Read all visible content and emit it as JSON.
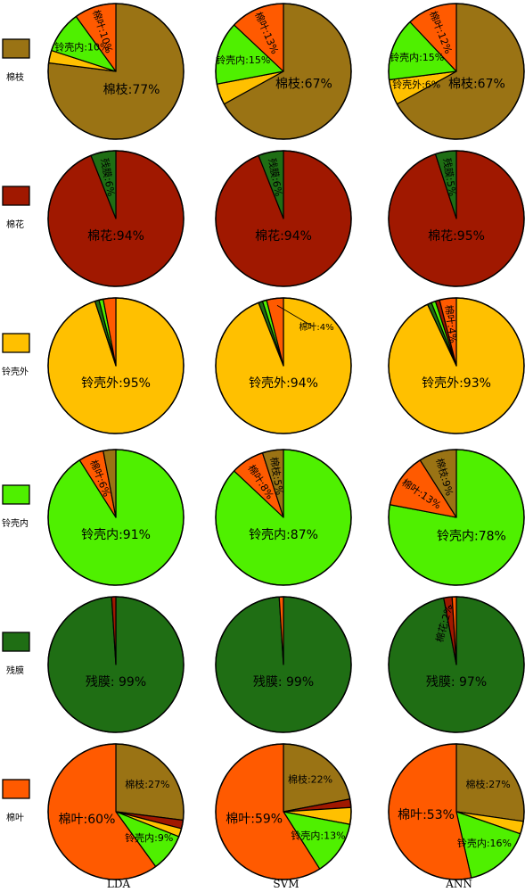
{
  "legend": [
    {
      "name": "棉枝",
      "color": "#9A7314"
    },
    {
      "name": "棉花",
      "color": "#A01800"
    },
    {
      "name": "铃壳外",
      "color": "#FFC000"
    },
    {
      "name": "铃壳内",
      "color": "#4FF000"
    },
    {
      "name": "残膜",
      "color": "#1F6E14"
    },
    {
      "name": "棉叶",
      "color": "#FF5A00"
    }
  ],
  "columns": [
    "LDA",
    "SVM",
    "ANN"
  ],
  "chart_data": {
    "type": "pie",
    "classes": [
      "棉枝",
      "棉花",
      "铃壳外",
      "铃壳内",
      "残膜",
      "棉叶"
    ],
    "colors": [
      "#9A7314",
      "#A01800",
      "#FFC000",
      "#4FF000",
      "#1F6E14",
      "#FF5A00"
    ],
    "methods": [
      "LDA",
      "SVM",
      "ANN"
    ],
    "rows": [
      {
        "true_class": "棉枝",
        "pies": [
          {
            "method": "LDA",
            "slices": [
              {
                "name": "棉枝",
                "value": 77
              },
              {
                "name": "铃壳外",
                "value": 3
              },
              {
                "name": "铃壳内",
                "value": 10
              },
              {
                "name": "棉叶",
                "value": 10
              }
            ],
            "labels": [
              {
                "text": "棉枝:77%"
              },
              {
                "text": "铃壳内:10%"
              },
              {
                "text": "棉叶:10%"
              }
            ]
          },
          {
            "method": "SVM",
            "slices": [
              {
                "name": "棉枝",
                "value": 67
              },
              {
                "name": "铃壳外",
                "value": 5
              },
              {
                "name": "铃壳内",
                "value": 15
              },
              {
                "name": "棉叶",
                "value": 13
              }
            ],
            "labels": [
              {
                "text": "棉枝:67%"
              },
              {
                "text": "铃壳内:15%"
              },
              {
                "text": "棉叶:13%"
              }
            ]
          },
          {
            "method": "ANN",
            "slices": [
              {
                "name": "棉枝",
                "value": 67
              },
              {
                "name": "铃壳外",
                "value": 6
              },
              {
                "name": "铃壳内",
                "value": 15
              },
              {
                "name": "棉叶",
                "value": 12
              }
            ],
            "labels": [
              {
                "text": "棉枝:67%"
              },
              {
                "text": "铃壳外:6%"
              },
              {
                "text": "铃壳内:15%"
              },
              {
                "text": "棉叶:12%"
              }
            ]
          }
        ]
      },
      {
        "true_class": "棉花",
        "pies": [
          {
            "method": "LDA",
            "slices": [
              {
                "name": "棉花",
                "value": 94
              },
              {
                "name": "残膜",
                "value": 6
              }
            ],
            "labels": [
              {
                "text": "棉花:94%"
              },
              {
                "text": "残膜:6%"
              }
            ]
          },
          {
            "method": "SVM",
            "slices": [
              {
                "name": "棉花",
                "value": 94
              },
              {
                "name": "残膜",
                "value": 6
              }
            ],
            "labels": [
              {
                "text": "棉花:94%"
              },
              {
                "text": "残膜:6%"
              }
            ]
          },
          {
            "method": "ANN",
            "slices": [
              {
                "name": "棉花",
                "value": 95
              },
              {
                "name": "残膜",
                "value": 5
              }
            ],
            "labels": [
              {
                "text": "棉花:95%"
              },
              {
                "text": "残膜:5%"
              }
            ]
          }
        ]
      },
      {
        "true_class": "铃壳外",
        "pies": [
          {
            "method": "LDA",
            "slices": [
              {
                "name": "铃壳外",
                "value": 95
              },
              {
                "name": "残膜",
                "value": 1
              },
              {
                "name": "铃壳内",
                "value": 1
              },
              {
                "name": "棉叶",
                "value": 3
              }
            ],
            "labels": [
              {
                "text": "铃壳外:95%"
              }
            ]
          },
          {
            "method": "SVM",
            "slices": [
              {
                "name": "铃壳外",
                "value": 94
              },
              {
                "name": "残膜",
                "value": 1
              },
              {
                "name": "铃壳内",
                "value": 1
              },
              {
                "name": "棉叶",
                "value": 4
              }
            ],
            "labels": [
              {
                "text": "铃壳外:94%"
              },
              {
                "text": "棉叶:4%"
              }
            ]
          },
          {
            "method": "ANN",
            "slices": [
              {
                "name": "铃壳外",
                "value": 93
              },
              {
                "name": "残膜",
                "value": 1
              },
              {
                "name": "铃壳内",
                "value": 1
              },
              {
                "name": "棉花",
                "value": 1
              },
              {
                "name": "棉叶",
                "value": 4
              }
            ],
            "labels": [
              {
                "text": "铃壳外:93%"
              },
              {
                "text": "棉叶:4%"
              }
            ]
          }
        ]
      },
      {
        "true_class": "铃壳内",
        "pies": [
          {
            "method": "LDA",
            "slices": [
              {
                "name": "铃壳内",
                "value": 91
              },
              {
                "name": "棉叶",
                "value": 6
              },
              {
                "name": "棉枝",
                "value": 3
              }
            ],
            "labels": [
              {
                "text": "铃壳内:91%"
              },
              {
                "text": "棉叶:6%"
              }
            ]
          },
          {
            "method": "SVM",
            "slices": [
              {
                "name": "铃壳内",
                "value": 87
              },
              {
                "name": "棉叶",
                "value": 8
              },
              {
                "name": "棉枝",
                "value": 5
              }
            ],
            "labels": [
              {
                "text": "铃壳内:87%"
              },
              {
                "text": "棉叶:8%"
              },
              {
                "text": "棉枝:5%"
              }
            ]
          },
          {
            "method": "ANN",
            "slices": [
              {
                "name": "铃壳内",
                "value": 78
              },
              {
                "name": "棉叶",
                "value": 13
              },
              {
                "name": "棉枝",
                "value": 9
              }
            ],
            "labels": [
              {
                "text": "铃壳内:78%"
              },
              {
                "text": "棉叶:13%"
              },
              {
                "text": "棉枝:9%"
              }
            ]
          }
        ]
      },
      {
        "true_class": "残膜",
        "pies": [
          {
            "method": "LDA",
            "slices": [
              {
                "name": "残膜",
                "value": 99
              },
              {
                "name": "棉花",
                "value": 1
              }
            ],
            "labels": [
              {
                "text": "残膜: 99%"
              }
            ]
          },
          {
            "method": "SVM",
            "slices": [
              {
                "name": "残膜",
                "value": 99
              },
              {
                "name": "棉叶",
                "value": 1
              }
            ],
            "labels": [
              {
                "text": "残膜: 99%"
              }
            ]
          },
          {
            "method": "ANN",
            "slices": [
              {
                "name": "残膜",
                "value": 97
              },
              {
                "name": "棉花",
                "value": 2
              },
              {
                "name": "棉叶",
                "value": 1
              }
            ],
            "labels": [
              {
                "text": "残膜: 97%"
              },
              {
                "text": "棉花:2%"
              }
            ]
          }
        ]
      },
      {
        "true_class": "棉叶",
        "pies": [
          {
            "method": "LDA",
            "slices": [
              {
                "name": "棉枝",
                "value": 27
              },
              {
                "name": "棉花",
                "value": 2
              },
              {
                "name": "铃壳外",
                "value": 2
              },
              {
                "name": "铃壳内",
                "value": 9
              },
              {
                "name": "棉叶",
                "value": 60
              }
            ],
            "labels": [
              {
                "text": "棉枝:27%"
              },
              {
                "text": "铃壳内:9%"
              },
              {
                "text": "棉叶:60%"
              }
            ]
          },
          {
            "method": "SVM",
            "slices": [
              {
                "name": "棉枝",
                "value": 22
              },
              {
                "name": "棉花",
                "value": 2
              },
              {
                "name": "铃壳外",
                "value": 4
              },
              {
                "name": "铃壳内",
                "value": 13
              },
              {
                "name": "棉叶",
                "value": 59
              }
            ],
            "labels": [
              {
                "text": "棉枝:22%"
              },
              {
                "text": "铃壳内:13%"
              },
              {
                "text": "棉叶:59%"
              }
            ]
          },
          {
            "method": "ANN",
            "slices": [
              {
                "name": "棉枝",
                "value": 27
              },
              {
                "name": "铃壳外",
                "value": 3
              },
              {
                "name": "铃壳内",
                "value": 16
              },
              {
                "name": "棉叶",
                "value": 53
              }
            ],
            "labels": [
              {
                "text": "棉枝:27%"
              },
              {
                "text": "铃壳内:16%"
              },
              {
                "text": "棉叶:53%"
              }
            ]
          }
        ]
      }
    ]
  }
}
